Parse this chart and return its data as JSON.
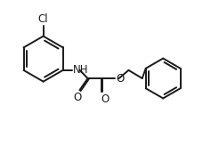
{
  "background_color": "#ffffff",
  "line_color": "#1a1a1a",
  "line_width": 1.4,
  "font_size": 8.5,
  "figsize": [
    2.46,
    1.73
  ],
  "dpi": 100,
  "xlim": [
    0,
    12
  ],
  "ylim": [
    0,
    8
  ]
}
